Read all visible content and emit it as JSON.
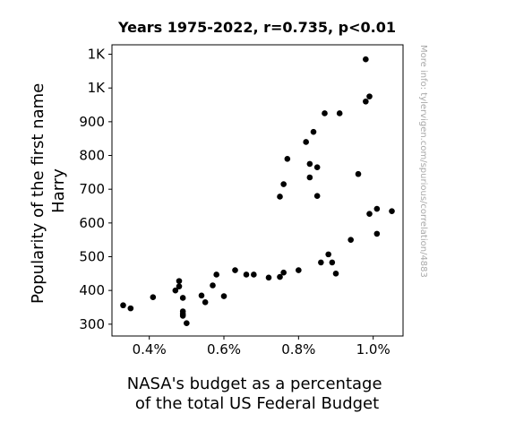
{
  "chart_data": {
    "type": "scatter",
    "title": "Years 1975-2022, r=0.735, p<0.01",
    "ylabel_lines": [
      "Popularity of the first name",
      "Harry"
    ],
    "xlabel_lines": [
      "NASA's budget as a percentage",
      "of the total US Federal Budget"
    ],
    "watermark": "More info: tylervigen.com/spurious/correlation/4883",
    "xlim": [
      0.3,
      1.08
    ],
    "ylim": [
      265,
      1128
    ],
    "x_ticks": [
      {
        "value": 0.4,
        "label": "0.4%"
      },
      {
        "value": 0.6,
        "label": "0.6%"
      },
      {
        "value": 0.8,
        "label": "0.8%"
      },
      {
        "value": 1.0,
        "label": "1.0%"
      }
    ],
    "y_ticks": [
      {
        "value": 300,
        "label": "300"
      },
      {
        "value": 400,
        "label": "400"
      },
      {
        "value": 500,
        "label": "500"
      },
      {
        "value": 600,
        "label": "600"
      },
      {
        "value": 700,
        "label": "700"
      },
      {
        "value": 800,
        "label": "800"
      },
      {
        "value": 900,
        "label": "900"
      },
      {
        "value": 1000,
        "label": "1K"
      },
      {
        "value": 1100,
        "label": "1K"
      }
    ],
    "grid": false,
    "point_color": "#000000",
    "points": [
      [
        0.98,
        1085
      ],
      [
        0.99,
        975
      ],
      [
        0.98,
        960
      ],
      [
        0.87,
        925
      ],
      [
        0.91,
        925
      ],
      [
        0.84,
        870
      ],
      [
        0.82,
        840
      ],
      [
        0.77,
        790
      ],
      [
        0.83,
        775
      ],
      [
        0.85,
        765
      ],
      [
        0.96,
        745
      ],
      [
        0.83,
        735
      ],
      [
        0.76,
        715
      ],
      [
        0.75,
        678
      ],
      [
        0.85,
        680
      ],
      [
        1.01,
        642
      ],
      [
        1.05,
        635
      ],
      [
        0.99,
        627
      ],
      [
        1.01,
        568
      ],
      [
        0.94,
        550
      ],
      [
        0.88,
        507
      ],
      [
        0.86,
        483
      ],
      [
        0.89,
        483
      ],
      [
        0.9,
        450
      ],
      [
        0.8,
        460
      ],
      [
        0.76,
        453
      ],
      [
        0.75,
        440
      ],
      [
        0.72,
        438
      ],
      [
        0.68,
        447
      ],
      [
        0.66,
        447
      ],
      [
        0.63,
        460
      ],
      [
        0.58,
        447
      ],
      [
        0.57,
        415
      ],
      [
        0.6,
        383
      ],
      [
        0.54,
        385
      ],
      [
        0.55,
        365
      ],
      [
        0.48,
        428
      ],
      [
        0.48,
        412
      ],
      [
        0.47,
        400
      ],
      [
        0.49,
        378
      ],
      [
        0.49,
        338
      ],
      [
        0.49,
        330
      ],
      [
        0.49,
        325
      ],
      [
        0.5,
        303
      ],
      [
        0.41,
        380
      ],
      [
        0.33,
        356
      ],
      [
        0.35,
        347
      ]
    ]
  }
}
